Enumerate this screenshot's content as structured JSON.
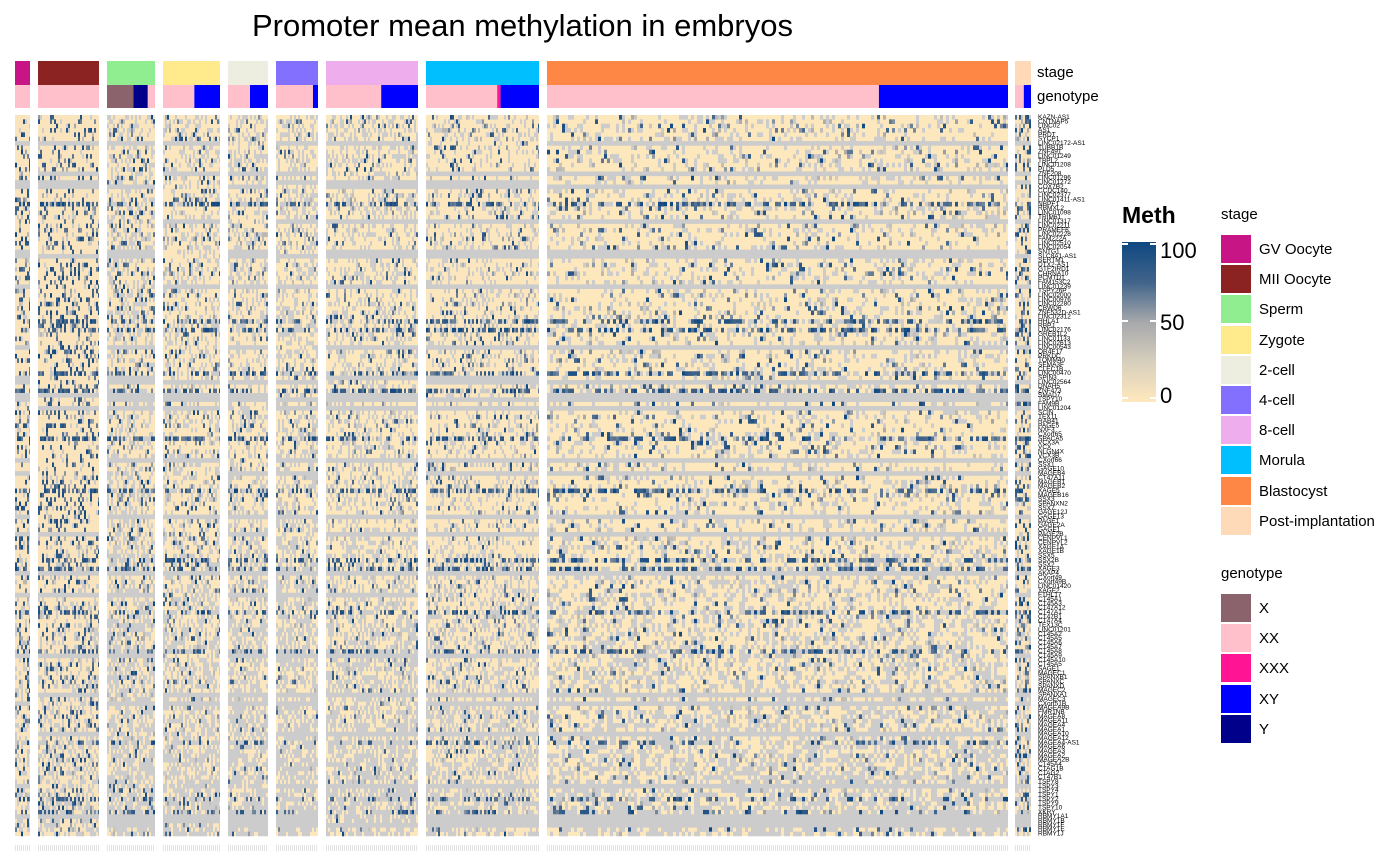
{
  "chart_data": {
    "type": "heatmap",
    "title": "Promoter mean methylation in embryos",
    "value_name": "Meth",
    "value_range": [
      0,
      100
    ],
    "value_ticks": [
      0,
      50,
      100
    ],
    "colorscale": [
      "#ffe8bd",
      "#d7cfbd",
      "#a6a8ab",
      "#41648a",
      "#0e4781"
    ],
    "na_color": "#cccccc",
    "annotation_tracks": [
      "stage",
      "genotype"
    ],
    "stage_legend": {
      "title": "stage",
      "items": [
        {
          "label": "GV Oocyte",
          "color": "#c71585"
        },
        {
          "label": "MII Oocyte",
          "color": "#8b2323"
        },
        {
          "label": "Sperm",
          "color": "#90ee90"
        },
        {
          "label": "Zygote",
          "color": "#ffeb8b"
        },
        {
          "label": "2-cell",
          "color": "#eeeee0"
        },
        {
          "label": "4-cell",
          "color": "#8470ff"
        },
        {
          "label": "8-cell",
          "color": "#eeaeee"
        },
        {
          "label": "Morula",
          "color": "#00bfff"
        },
        {
          "label": "Blastocyst",
          "color": "#ff8746"
        },
        {
          "label": "Post-implantation",
          "color": "#ffdab9"
        }
      ]
    },
    "genotype_legend": {
      "title": "genotype",
      "items": [
        {
          "label": "X",
          "color": "#8b636c"
        },
        {
          "label": "XX",
          "color": "#ffc0cb"
        },
        {
          "label": "XXX",
          "color": "#ff1493"
        },
        {
          "label": "XY",
          "color": "#0000ff"
        },
        {
          "label": "Y",
          "color": "#00008b"
        }
      ]
    },
    "column_groups": [
      {
        "stage": "GV Oocyte",
        "genotype_segments": [
          {
            "genotype": "XX",
            "fraction": 1.0
          }
        ],
        "mean_meth": 40,
        "na_bias": 0.05
      },
      {
        "stage": "MII Oocyte",
        "genotype_segments": [
          {
            "genotype": "XX",
            "fraction": 1.0
          }
        ],
        "mean_meth": 38,
        "na_bias": 0.05
      },
      {
        "stage": "Sperm",
        "genotype_segments": [
          {
            "genotype": "X",
            "fraction": 0.55
          },
          {
            "genotype": "Y",
            "fraction": 0.3
          },
          {
            "genotype": "XX",
            "fraction": 0.15
          }
        ],
        "mean_meth": 30,
        "na_bias": 0.3
      },
      {
        "stage": "Zygote",
        "genotype_segments": [
          {
            "genotype": "XX",
            "fraction": 0.55
          },
          {
            "genotype": "XY",
            "fraction": 0.45
          }
        ],
        "mean_meth": 22,
        "na_bias": 0.25
      },
      {
        "stage": "2-cell",
        "genotype_segments": [
          {
            "genotype": "XX",
            "fraction": 0.55
          },
          {
            "genotype": "XY",
            "fraction": 0.45
          }
        ],
        "mean_meth": 18,
        "na_bias": 0.3
      },
      {
        "stage": "4-cell",
        "genotype_segments": [
          {
            "genotype": "XX",
            "fraction": 0.88
          },
          {
            "genotype": "XY",
            "fraction": 0.12
          }
        ],
        "mean_meth": 15,
        "na_bias": 0.35
      },
      {
        "stage": "8-cell",
        "genotype_segments": [
          {
            "genotype": "XX",
            "fraction": 0.6
          },
          {
            "genotype": "XY",
            "fraction": 0.4
          }
        ],
        "mean_meth": 15,
        "na_bias": 0.3
      },
      {
        "stage": "Morula",
        "genotype_segments": [
          {
            "genotype": "XX",
            "fraction": 0.63
          },
          {
            "genotype": "XXX",
            "fraction": 0.03
          },
          {
            "genotype": "XY",
            "fraction": 0.34
          }
        ],
        "mean_meth": 16,
        "na_bias": 0.2
      },
      {
        "stage": "Blastocyst",
        "genotype_segments": [
          {
            "genotype": "XX",
            "fraction": 0.72
          },
          {
            "genotype": "XY",
            "fraction": 0.28
          }
        ],
        "mean_meth": 14,
        "na_bias": 0.2
      },
      {
        "stage": "Post-implantation",
        "genotype_segments": [
          {
            "genotype": "XX",
            "fraction": 0.55
          },
          {
            "genotype": "XY",
            "fraction": 0.45
          }
        ],
        "mean_meth": 65,
        "na_bias": 0.1
      }
    ],
    "row_labels": [
      "KAZN-AS1",
      "CNTNAP5",
      "LINC02",
      "AS1",
      "PRDT",
      "SYCP1",
      "LINC02172-AS1",
      "TUBB1B",
      "ZNF491",
      "LINC01249",
      "TBPL2",
      "LINC01208",
      "PLD5",
      "ZNF208",
      "LINC01296",
      "LINC01272",
      "COX7B2",
      "CCDC140",
      "LINC02377",
      "LINC01411-AS1",
      "NBPF1",
      "RBMXL2",
      "LINC01098",
      "TRIM61",
      "LINC01317",
      "LINC02211",
      "PRAMEF6",
      "LINC02228",
      "FAM222A",
      "LINC02510",
      "LINC02054",
      "SNTG1",
      "SLC8A1-AS1",
      "SERTM1",
      "DTX2-AS1",
      "GTF2IRD1",
      "CHRNA10",
      "PCMTD1",
      "FAM153C2",
      "LINC01239",
      "TSPY26P",
      "LINC02000",
      "LINC00976",
      "LINC02280",
      "CBWD6",
      "ZNF532D-AS1",
      "LINC02312",
      "HHLA1",
      "RBPJ",
      "LINC02176",
      "GREB1L2",
      "LINC01133",
      "LINC02613",
      "LINC00543",
      "OR4F17",
      "PRKDC",
      "TOMM40",
      "SEMA3F",
      "CLEC1B",
      "LINC00470",
      "SPIN3",
      "LINC02564",
      "DNAH5",
      "ZNF473",
      "SMAD7",
      "TSPY10",
      "FAM9B",
      "LINC01204",
      "SCIN",
      "TEX11",
      "RAB41",
      "PAGE5",
      "NXF3",
      "CXorf65",
      "SPACA5",
      "VCX3A",
      "VCX",
      "NLGN4X",
      "VCX3B",
      "CXorf66",
      "SSX1",
      "GAGE10",
      "MAGEB4",
      "CT47A11",
      "MAGEB1",
      "MAGEB2",
      "XAGE5",
      "MAGEB16",
      "SSX3",
      "SPANXN2",
      "SSX7",
      "GAGE12J",
      "GAGE13",
      "PAGE1",
      "GAGE2A",
      "GAGE1",
      "PAGE2B",
      "CENPVL1",
      "CENPVL2",
      "XAGE1A",
      "XAGE1B",
      "SSX5",
      "SSX2B",
      "SSX2",
      "XAGE3",
      "AKAP4",
      "CXorf49",
      "CXorf49B",
      "LINC01420",
      "XAGE2",
      "FTHL17",
      "CT45A1",
      "CT45A3",
      "CT47A12",
      "CT47A1",
      "CT47B1",
      "CT47A4",
      "TEX13C",
      "LINC01201",
      "CT45A2",
      "CT45A5",
      "CT45A6",
      "CT45A7",
      "CT45A8",
      "CT45A9",
      "CT45A10",
      "CT45A5",
      "SAGE1",
      "MAGEC1",
      "SPANXB1",
      "SPANXC",
      "SPANXD",
      "MAGEC2",
      "SPANXA1",
      "MAGEC3",
      "CXorf51B",
      "MAGEA9B",
      "FMR1NB",
      "MAGEA8",
      "MAGEA11",
      "MAGEA4",
      "MAGEA1",
      "MAGEA10",
      "MAGEA12",
      "MAGEA4-AS1",
      "MAGEA6",
      "MAGEA3",
      "MAGEA2",
      "MAGEA2B",
      "CT45A4",
      "CTAG1B",
      "CTAG2",
      "CT47B1",
      "TSPY8",
      "TSPY3",
      "TSPY4",
      "TSPY1",
      "TSPY2",
      "TSPY9",
      "TSPY10",
      "XKRY",
      "RBMY1A1",
      "RBMY1B",
      "RBMY1F",
      "RBMY1E",
      "RBMY1J"
    ]
  }
}
